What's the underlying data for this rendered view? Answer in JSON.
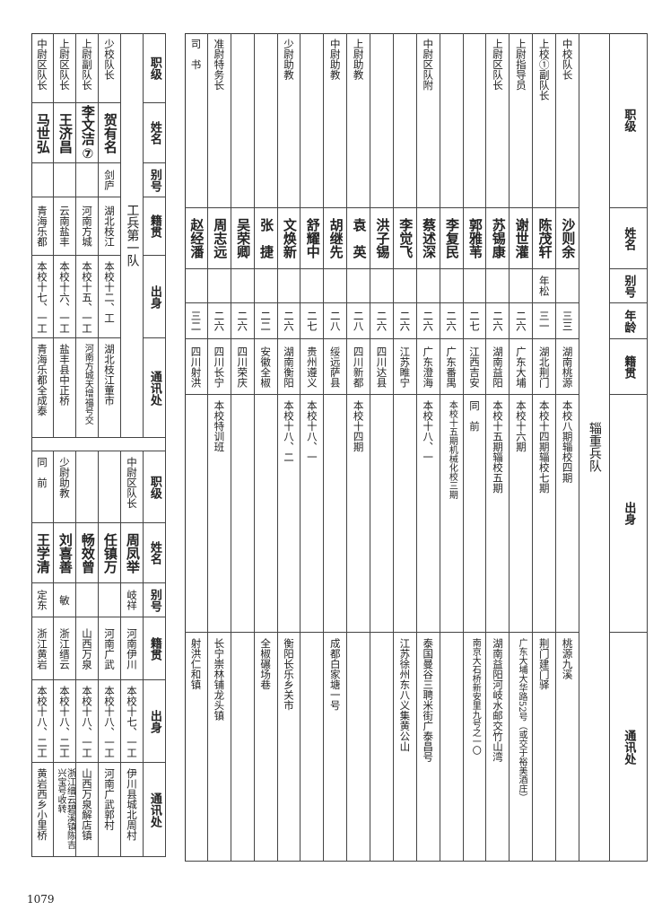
{
  "page_number": "1079",
  "right_table": {
    "title": "辎重兵队",
    "headers": [
      "职级",
      "姓名",
      "别号",
      "年龄",
      "籍贯",
      "出身",
      "通讯处"
    ],
    "rows": [
      [
        "中校队长",
        "沙则余",
        "",
        "三三",
        "湖南桃源",
        "本校八期辎校四期",
        "桃源九溪"
      ],
      [
        "上校①副队长",
        "陈茂轩",
        "年松",
        "三一",
        "湖北荆门",
        "本校十四期辎校七期",
        "荆门建门驿"
      ],
      [
        "上尉指导员",
        "谢世灌",
        "",
        "二六",
        "广东大埔",
        "本校十六期",
        "广东大埔大华路52号（或交于裕美酒庄）"
      ],
      [
        "上尉区队长",
        "苏锡康",
        "",
        "二六",
        "湖南益阳",
        "本校十五期辎校五期",
        "湖南益阳河岐水邮交竹山湾"
      ],
      [
        "",
        "郭雅苇",
        "",
        "二七",
        "江西吉安",
        "同　前",
        "南京大石桥新安里九号之一〇"
      ],
      [
        "",
        "李复民",
        "",
        "二六",
        "广东番禺",
        "本校十五期机械化校三期",
        ""
      ],
      [
        "中尉区队附",
        "蔡述深",
        "",
        "二六",
        "广东澄海",
        "本校十八、一",
        "泰国曼谷三聘米街广泰昌号"
      ],
      [
        "",
        "李觉飞",
        "",
        "二六",
        "江苏睢宁",
        "",
        "江苏徐州东八义集黄公山"
      ],
      [
        "",
        "洪子锡",
        "",
        "二六",
        "四川达县",
        "",
        ""
      ],
      [
        "上尉助教",
        "袁　英",
        "",
        "二八",
        "四川新都",
        "本校十四期",
        ""
      ],
      [
        "中尉助教",
        "胡继先",
        "",
        "二八",
        "绥远萨县",
        "",
        "成都白家塘一号"
      ],
      [
        "",
        "舒耀中",
        "",
        "二七",
        "贵州遵义",
        "本校十八、一",
        ""
      ],
      [
        "少尉助教",
        "文焕新",
        "",
        "二六",
        "湖南衡阳",
        "本校十八、二",
        "衡阳长乐乡关市"
      ],
      [
        "",
        "张　捷",
        "",
        "二二",
        "安徽全椒",
        "",
        "全椒碾场巷"
      ],
      [
        "",
        "吴荣卿",
        "",
        "二六",
        "四川荣庆",
        "",
        ""
      ],
      [
        "准尉特务长",
        "周志远",
        "",
        "二六",
        "四川长宁",
        "本校特训班",
        "长宁崇林铺龙头镇"
      ],
      [
        "司　书",
        "赵经潘",
        "",
        "三二",
        "四川射洪",
        "",
        "射洪仁和镇"
      ]
    ]
  },
  "left_table": {
    "title": "工兵第一队",
    "headers": [
      "职级",
      "姓名",
      "别号",
      "籍贯",
      "出身",
      "通讯处"
    ],
    "rows_top": [
      [
        "少校队长",
        "贺有名",
        "剑庐",
        "湖北枝江",
        "本校十二、工",
        "湖北枝江董市"
      ],
      [
        "上尉副队长",
        "李文洁⑦",
        "",
        "河南方城",
        "本校十五、一工",
        "河南方城天增福号交"
      ],
      [
        "上尉区队长",
        "王济昌",
        "",
        "云南盐丰",
        "本校十六、一工",
        "盐丰县中正桥"
      ],
      [
        "中尉区队长",
        "马世弘",
        "",
        "青海乐都",
        "本校十七、一工",
        "青海乐都全成泰"
      ]
    ],
    "rows_bottom": [
      [
        "中尉区队长",
        "周凤举",
        "岐祥",
        "河南伊川",
        "本校十七、一工",
        "伊川县城北周村"
      ],
      [
        "",
        "任镇万",
        "",
        "河南广武",
        "本校十八、一工",
        "河南广武郭村"
      ],
      [
        "",
        "畅效曾",
        "",
        "山西万泉",
        "本校十八、一工",
        "山西万泉解店镇"
      ],
      [
        "少尉助教",
        "刘喜善",
        "敏",
        "浙江缙云",
        "本校十八、二工",
        "浙江缙云碧溪镇陈吉兴宝号收转"
      ],
      [
        "同　前",
        "王学清",
        "定东",
        "浙江黄岩",
        "本校十八、二工",
        "黄岩西乡小里桥"
      ]
    ]
  }
}
